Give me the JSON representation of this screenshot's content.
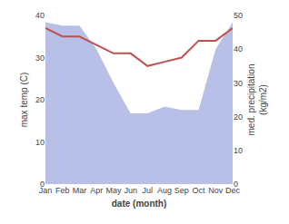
{
  "chart_data": {
    "type": "line",
    "xlabel": "date (month)",
    "ylabel": "max temp (C)",
    "y2label": "med. precipitation\n(kg/m2)",
    "categories": [
      "Jan",
      "Feb",
      "Mar",
      "Apr",
      "May",
      "Jun",
      "Jul",
      "Aug",
      "Sep",
      "Oct",
      "Nov",
      "Dec"
    ],
    "series": [
      {
        "type": "area",
        "axis": "y2",
        "color": "#b8c0e8",
        "values": [
          48,
          47,
          47,
          40,
          30,
          21,
          21,
          23,
          22,
          22,
          40,
          48
        ]
      },
      {
        "type": "line",
        "color": "#c0504d",
        "values": [
          37,
          35,
          35,
          33,
          31,
          31,
          28,
          29,
          30,
          34,
          34,
          37
        ]
      }
    ],
    "ylim": [
      0,
      40
    ],
    "yticks": [
      0,
      10,
      20,
      30,
      40
    ],
    "y2lim": [
      0,
      50
    ],
    "y2ticks": [
      0,
      10,
      20,
      30,
      40,
      50
    ],
    "grid": false
  }
}
